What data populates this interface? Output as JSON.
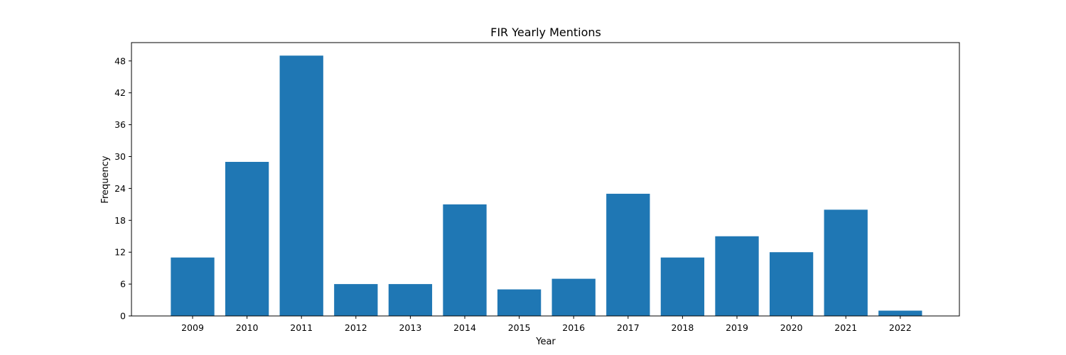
{
  "chart_data": {
    "type": "bar",
    "title": "FIR Yearly Mentions",
    "xlabel": "Year",
    "ylabel": "Frequency",
    "categories": [
      "2009",
      "2010",
      "2011",
      "2012",
      "2013",
      "2014",
      "2015",
      "2016",
      "2017",
      "2018",
      "2019",
      "2020",
      "2021",
      "2022"
    ],
    "values": [
      11,
      29,
      49,
      6,
      6,
      21,
      5,
      7,
      23,
      11,
      15,
      12,
      20,
      1
    ],
    "ylim": [
      0,
      51.45
    ],
    "yticks": [
      0,
      6,
      12,
      18,
      24,
      30,
      36,
      42,
      48
    ],
    "bar_color": "#1f77b4",
    "grid": false,
    "legend": "none"
  }
}
